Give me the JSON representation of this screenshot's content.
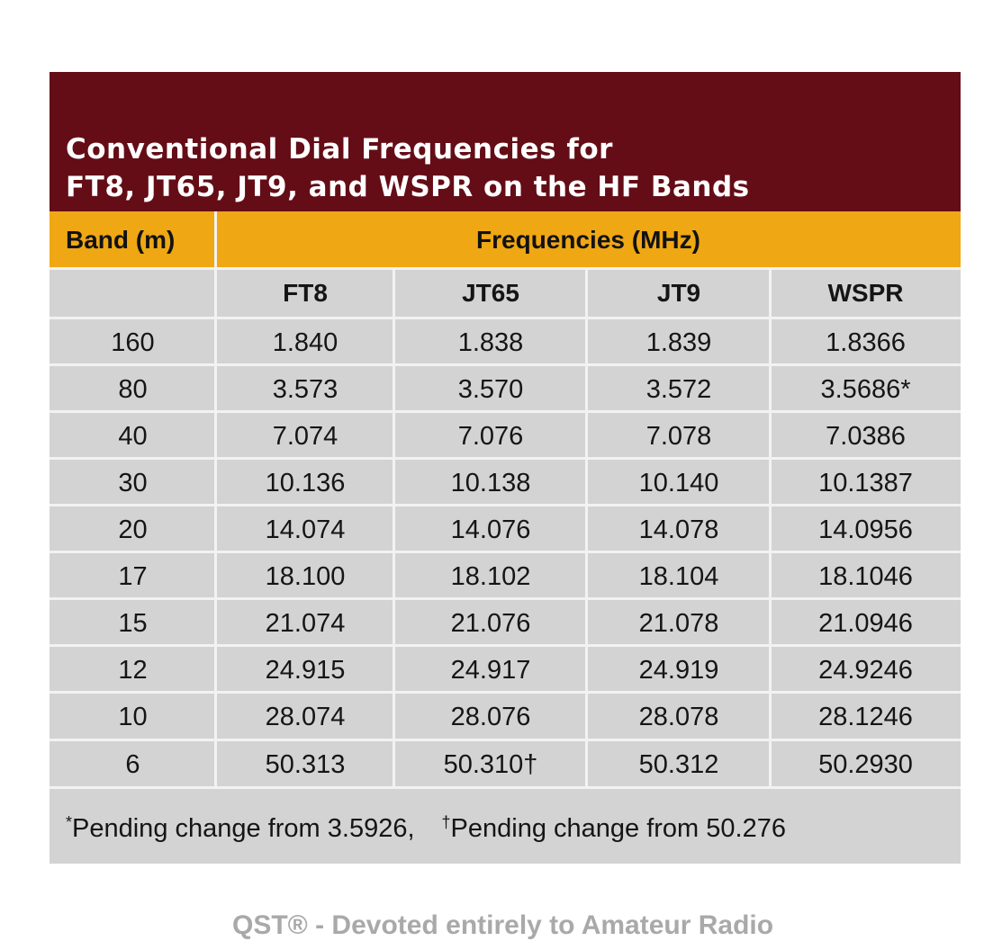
{
  "table": {
    "title_line1": "Conventional Dial Frequencies for",
    "title_line2": "FT8, JT65, JT9, and WSPR on the HF Bands",
    "band_header": "Band (m)",
    "freq_header": "Frequencies (MHz)",
    "modes": [
      "FT8",
      "JT65",
      "JT9",
      "WSPR"
    ],
    "rows": [
      [
        "160",
        "1.840",
        "1.838",
        "1.839",
        "1.8366"
      ],
      [
        "80",
        "3.573",
        "3.570",
        "3.572",
        "3.5686*"
      ],
      [
        "40",
        "7.074",
        "7.076",
        "7.078",
        "7.0386"
      ],
      [
        "30",
        "10.136",
        "10.138",
        "10.140",
        "10.1387"
      ],
      [
        "20",
        "14.074",
        "14.076",
        "14.078",
        "14.0956"
      ],
      [
        "17",
        "18.100",
        "18.102",
        "18.104",
        "18.1046"
      ],
      [
        "15",
        "21.074",
        "21.076",
        "21.078",
        "21.0946"
      ],
      [
        "12",
        "24.915",
        "24.917",
        "24.919",
        "24.9246"
      ],
      [
        "10",
        "28.074",
        "28.076",
        "28.078",
        "28.1246"
      ],
      [
        "6",
        "50.313",
        "50.310†",
        "50.312",
        "50.2930"
      ]
    ],
    "footnote1_symbol": "*",
    "footnote1_text": "Pending change from 3.5926,",
    "footnote2_symbol": "†",
    "footnote2_text": "Pending change from 50.276"
  },
  "footer": {
    "text": "QST® - Devoted entirely to Amateur Radio"
  },
  "colors": {
    "title_background": "#640d16",
    "header_background": "#efa714",
    "table_background": "#d3d3d3",
    "grid_lines": "#f2f2f2"
  }
}
